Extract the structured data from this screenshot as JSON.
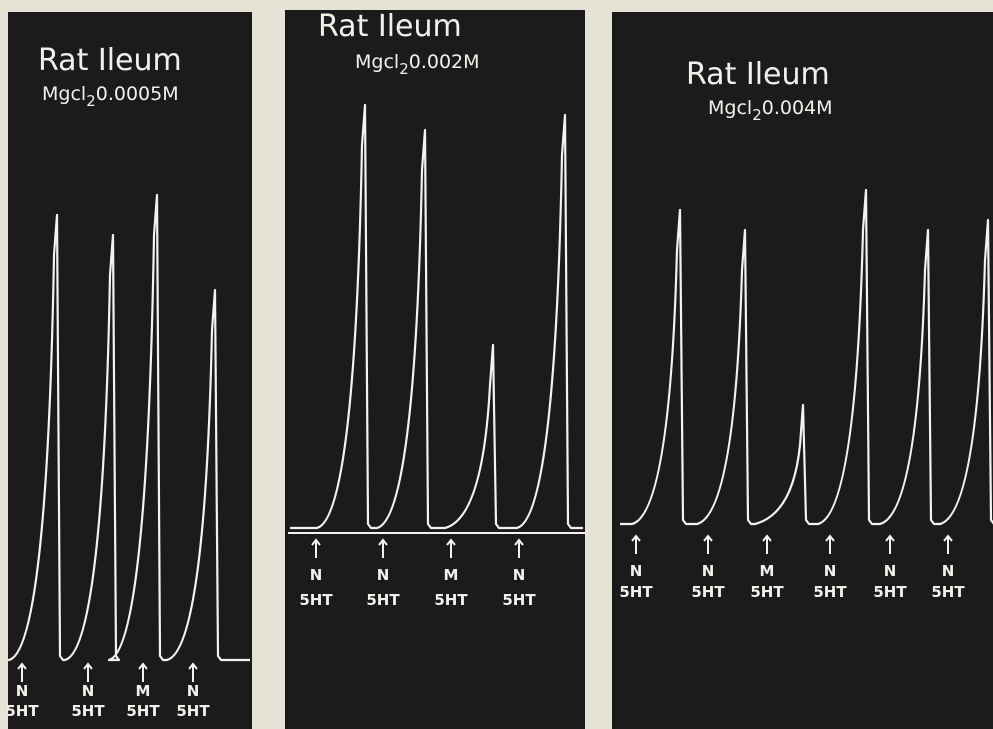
{
  "panels": [
    {
      "title": "Rat Ileum",
      "subtitle": {
        "salt": "Mgcl",
        "subscript": "2",
        "concentration": "0.0005M"
      },
      "markers": [
        {
          "drug": "N",
          "agonist": "5HT"
        },
        {
          "drug": "N",
          "agonist": "5HT"
        },
        {
          "drug": "M",
          "agonist": "5HT"
        },
        {
          "drug": "N",
          "agonist": "5HT"
        }
      ]
    },
    {
      "title": "Rat Ileum",
      "subtitle": {
        "salt": "Mgcl",
        "subscript": "2",
        "concentration": "0.002M"
      },
      "markers": [
        {
          "drug": "N",
          "agonist": "5HT"
        },
        {
          "drug": "N",
          "agonist": "5HT"
        },
        {
          "drug": "M",
          "agonist": "5HT"
        },
        {
          "drug": "N",
          "agonist": "5HT"
        }
      ]
    },
    {
      "title": "Rat Ileum",
      "subtitle": {
        "salt": "Mgcl",
        "subscript": "2",
        "concentration": "0.004M"
      },
      "markers": [
        {
          "drug": "N",
          "agonist": "5HT"
        },
        {
          "drug": "N",
          "agonist": "5HT"
        },
        {
          "drug": "M",
          "agonist": "5HT"
        },
        {
          "drug": "N",
          "agonist": "5HT"
        },
        {
          "drug": "N",
          "agonist": "5HT"
        },
        {
          "drug": "N",
          "agonist": "5HT"
        }
      ]
    }
  ]
}
